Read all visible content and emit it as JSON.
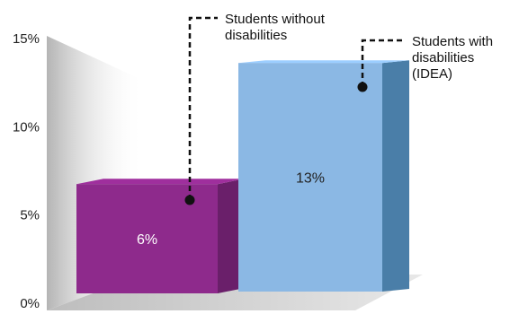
{
  "chart_data": {
    "type": "bar",
    "categories": [
      "Students without disabilities",
      "Students with disabilities (IDEA)"
    ],
    "values": [
      6,
      13
    ],
    "value_labels": [
      "6%",
      "13%"
    ],
    "ylim": [
      0,
      15
    ],
    "y_ticks": [
      "0%",
      "5%",
      "10%",
      "15%"
    ],
    "callouts": [
      [
        "Students without",
        "disabilities"
      ],
      [
        "Students with",
        "disabilities",
        "(IDEA)"
      ]
    ],
    "colors": {
      "bar_1": "#8e2a8c",
      "bar_1_side": "#6a1f6a",
      "bar_2": "#8bb8e4",
      "bar_2_side": "#4a7ea8",
      "wall": "#c4c4c4",
      "floor": "#d6d6d6"
    },
    "grid": false,
    "legend": "none"
  }
}
